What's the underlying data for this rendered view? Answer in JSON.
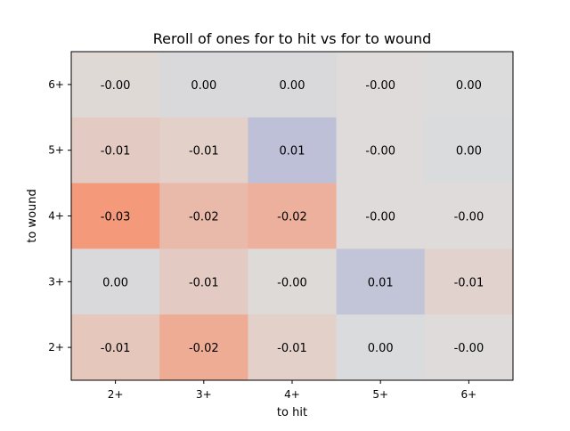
{
  "chart_data": {
    "type": "heatmap",
    "title": "Reroll of ones for to hit vs for to wound",
    "xlabel": "to hit",
    "ylabel": "to wound",
    "x_categories": [
      "2+",
      "3+",
      "4+",
      "5+",
      "6+"
    ],
    "y_categories": [
      "6+",
      "5+",
      "4+",
      "3+",
      "2+"
    ],
    "values": [
      [
        -0.002,
        0.0015,
        0.0015,
        -0.001,
        0.0005
      ],
      [
        -0.008,
        -0.006,
        0.012,
        -0.001,
        0.001
      ],
      [
        -0.03,
        -0.016,
        -0.02,
        -0.001,
        -0.001
      ],
      [
        0.0015,
        -0.008,
        -0.0015,
        0.01,
        -0.005
      ],
      [
        -0.01,
        -0.022,
        -0.006,
        0.001,
        -0.001
      ]
    ],
    "labels": [
      [
        "-0.00",
        "0.00",
        "0.00",
        "-0.00",
        "0.00"
      ],
      [
        "-0.01",
        "-0.01",
        "0.01",
        "-0.00",
        "0.00"
      ],
      [
        "-0.03",
        "-0.02",
        "-0.02",
        "-0.00",
        "-0.00"
      ],
      [
        "0.00",
        "-0.01",
        "-0.00",
        "0.01",
        "-0.01"
      ],
      [
        "-0.01",
        "-0.02",
        "-0.01",
        "0.00",
        "-0.00"
      ]
    ],
    "colormap": "coolwarm",
    "color_range": [
      -0.06,
      0.06
    ],
    "grid": false
  }
}
